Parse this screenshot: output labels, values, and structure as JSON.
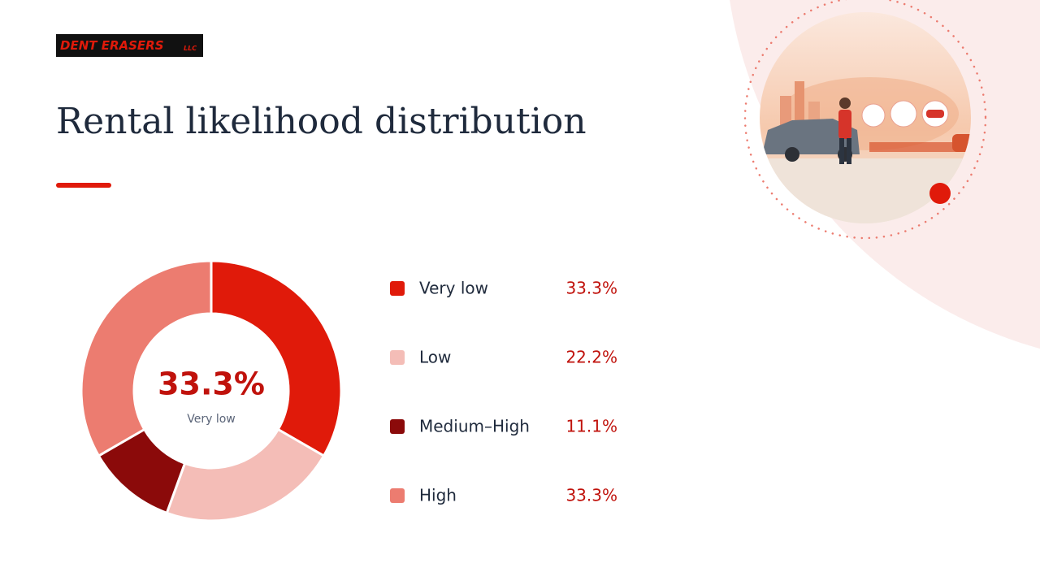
{
  "logo": "DENT ERASERS",
  "logo_suffix": "LLC",
  "chart_data": {
    "type": "pie",
    "title": "Rental likelihood distribution",
    "categories": [
      "Very low",
      "Low",
      "Medium–High",
      "High"
    ],
    "values": [
      33.3,
      22.2,
      11.1,
      33.3
    ],
    "value_labels": [
      "33.3%",
      "22.2%",
      "11.1%",
      "33.3%"
    ],
    "colors": [
      "#e01a0a",
      "#f4bdb7",
      "#8b0a0a",
      "#ec7c70"
    ],
    "donut": true,
    "legend": "right"
  }
}
